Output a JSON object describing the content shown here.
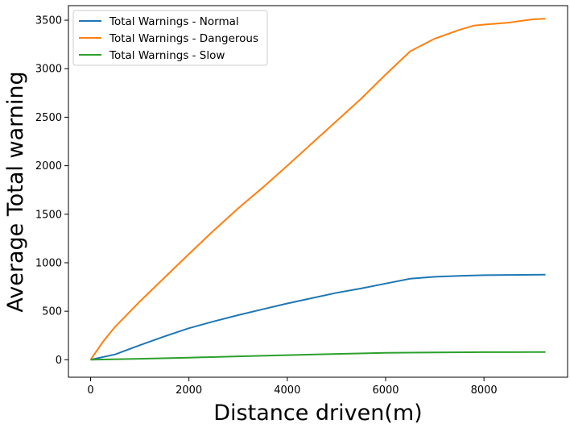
{
  "chart_data": {
    "type": "line",
    "title": "",
    "xlabel": "Distance driven(m)",
    "ylabel": "Average Total warning",
    "xlim": [
      -450,
      9700
    ],
    "ylim": [
      -180,
      3650
    ],
    "xticks": [
      0,
      2000,
      4000,
      6000,
      8000
    ],
    "yticks": [
      0,
      500,
      1000,
      1500,
      2000,
      2500,
      3000,
      3500
    ],
    "grid": false,
    "legend_position": "upper-left",
    "series": [
      {
        "name": "Total Warnings - Normal",
        "color": "#1f77b4",
        "x": [
          0,
          500,
          1000,
          1500,
          2000,
          2500,
          3000,
          3500,
          4000,
          4500,
          5000,
          5500,
          6000,
          6500,
          7000,
          7500,
          8000,
          8500,
          9000,
          9250
        ],
        "y": [
          0,
          55,
          150,
          240,
          325,
          395,
          460,
          520,
          580,
          635,
          690,
          735,
          785,
          835,
          855,
          865,
          872,
          874,
          876,
          877
        ]
      },
      {
        "name": "Total Warnings - Dangerous",
        "color": "#ff7f0e",
        "x": [
          0,
          250,
          500,
          1000,
          1500,
          2000,
          2500,
          3000,
          3500,
          4000,
          4500,
          5000,
          5500,
          6000,
          6500,
          7000,
          7500,
          7800,
          8000,
          8500,
          9000,
          9250
        ],
        "y": [
          0,
          185,
          340,
          600,
          845,
          1090,
          1330,
          1560,
          1775,
          2000,
          2230,
          2460,
          2690,
          2940,
          3180,
          3310,
          3400,
          3445,
          3455,
          3475,
          3510,
          3515
        ]
      },
      {
        "name": "Total Warnings - Slow",
        "color": "#2ca02c",
        "x": [
          0,
          1000,
          2000,
          3000,
          4000,
          5000,
          6000,
          7000,
          8000,
          9000,
          9250
        ],
        "y": [
          0,
          10,
          22,
          35,
          48,
          60,
          72,
          76,
          78,
          79,
          79
        ]
      }
    ]
  }
}
